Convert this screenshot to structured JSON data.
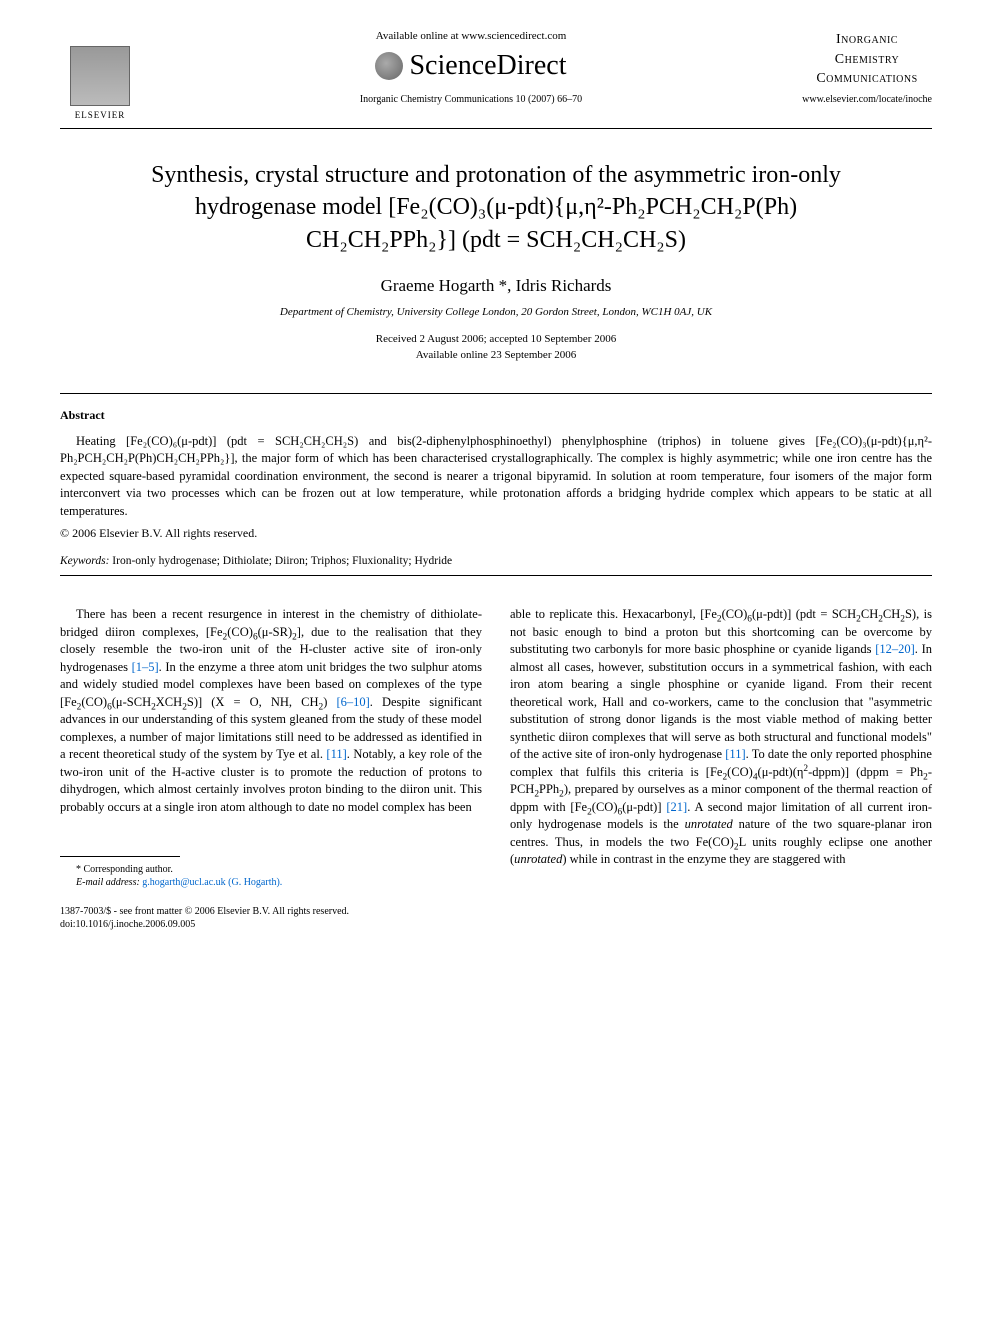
{
  "header": {
    "available_text": "Available online at www.sciencedirect.com",
    "sd_brand": "ScienceDirect",
    "journal_ref": "Inorganic Chemistry Communications 10 (2007) 66–70",
    "elsevier_label": "ELSEVIER",
    "journal_name_line1": "Inorganic",
    "journal_name_line2": "Chemistry",
    "journal_name_line3": "Communications",
    "journal_url": "www.elsevier.com/locate/inoche"
  },
  "title": {
    "line1": "Synthesis, crystal structure and protonation of the asymmetric iron-only",
    "line2": "hydrogenase model [Fe₂(CO)₃(μ-pdt){μ,η²-Ph₂PCH₂CH₂P(Ph)",
    "line3": "CH₂CH₂PPh₂}] (pdt = SCH₂CH₂CH₂S)"
  },
  "authors": "Graeme Hogarth *, Idris Richards",
  "affiliation": "Department of Chemistry, University College London, 20 Gordon Street, London, WC1H 0AJ, UK",
  "dates": {
    "received": "Received 2 August 2006; accepted 10 September 2006",
    "available": "Available online 23 September 2006"
  },
  "abstract": {
    "heading": "Abstract",
    "text": "Heating [Fe₂(CO)₆(μ-pdt)] (pdt = SCH₂CH₂CH₂S) and bis(2-diphenylphosphinoethyl) phenylphosphine (triphos) in toluene gives [Fe₂(CO)₃(μ-pdt){μ,η²-Ph₂PCH₂CH₂P(Ph)CH₂CH₂PPh₂}], the major form of which has been characterised crystallographically. The complex is highly asymmetric; while one iron centre has the expected square-based pyramidal coordination environment, the second is nearer a trigonal bipyramid. In solution at room temperature, four isomers of the major form interconvert via two processes which can be frozen out at low temperature, while protonation affords a bridging hydride complex which appears to be static at all temperatures.",
    "copyright": "© 2006 Elsevier B.V. All rights reserved."
  },
  "keywords": {
    "label": "Keywords:",
    "text": " Iron-only hydrogenase; Dithiolate; Diiron; Triphos; Fluxionality; Hydride"
  },
  "body": {
    "col1": "There has been a recent resurgence in interest in the chemistry of dithiolate-bridged diiron complexes, [Fe₂(CO)₆(μ-SR)₂], due to the realisation that they closely resemble the two-iron unit of the H-cluster active site of iron-only hydrogenases [1–5]. In the enzyme a three atom unit bridges the two sulphur atoms and widely studied model complexes have been based on complexes of the type [Fe₂(CO)₆(μ-SCH₂XCH₂S)] (X = O, NH, CH₂) [6–10]. Despite significant advances in our understanding of this system gleaned from the study of these model complexes, a number of major limitations still need to be addressed as identified in a recent theoretical study of the system by Tye et al. [11]. Notably, a key role of the two-iron unit of the H-active cluster is to promote the reduction of protons to dihydrogen, which almost certainly involves proton binding to the diiron unit. This probably occurs at a single iron atom although to date no model complex has been",
    "col2": "able to replicate this. Hexacarbonyl, [Fe₂(CO)₆(μ-pdt)] (pdt = SCH₂CH₂CH₂S), is not basic enough to bind a proton but this shortcoming can be overcome by substituting two carbonyls for more basic phosphine or cyanide ligands [12–20]. In almost all cases, however, substitution occurs in a symmetrical fashion, with each iron atom bearing a single phosphine or cyanide ligand. From their recent theoretical work, Hall and co-workers, came to the conclusion that \"asymmetric substitution of strong donor ligands is the most viable method of making better synthetic diiron complexes that will serve as both structural and functional models\" of the active site of iron-only hydrogenase [11]. To date the only reported phosphine complex that fulfils this criteria is [Fe₂(CO)₄(μ-pdt)(η²-dppm)] (dppm = Ph₂-PCH₂PPh₂), prepared by ourselves as a minor component of the thermal reaction of dppm with [Fe₂(CO)₆(μ-pdt)] [21]. A second major limitation of all current iron-only hydrogenase models is the unrotated nature of the two square-planar iron centres. Thus, in models the two Fe(CO)₂L units roughly eclipse one another (unrotated) while in contrast in the enzyme they are staggered with"
  },
  "refs": {
    "r1": "[1–5]",
    "r2": "[6–10]",
    "r3": "[11]",
    "r4": "[12–20]",
    "r5": "[11]",
    "r6": "[21]"
  },
  "footnote": {
    "corresp": "* Corresponding author.",
    "email_label": "E-mail address:",
    "email": " g.hogarth@ucl.ac.uk (G. Hogarth)."
  },
  "bottom": {
    "line1": "1387-7003/$ - see front matter © 2006 Elsevier B.V. All rights reserved.",
    "line2": "doi:10.1016/j.inoche.2006.09.005"
  },
  "colors": {
    "link": "#0066cc",
    "text": "#000000",
    "bg": "#ffffff"
  }
}
